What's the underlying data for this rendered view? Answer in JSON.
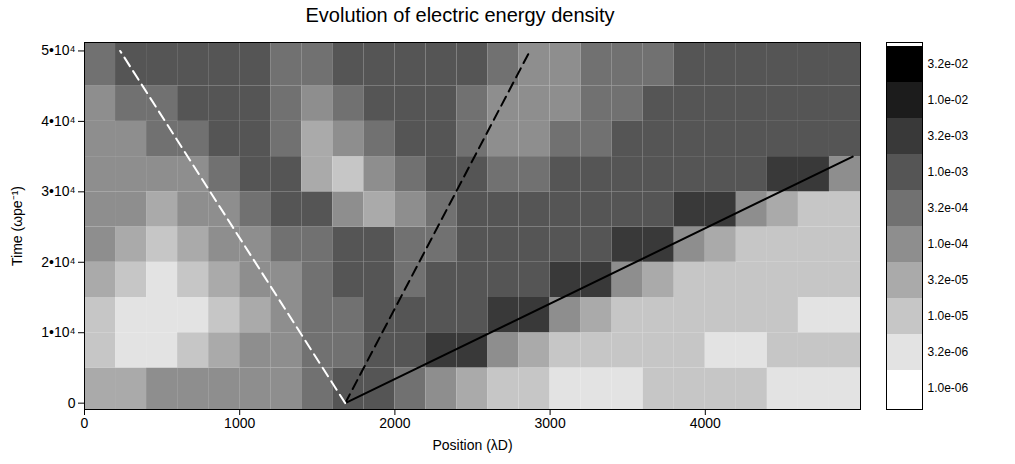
{
  "chart_data": {
    "type": "heatmap",
    "title": "Evolution of electric energy density",
    "xlabel": "Position (λD)",
    "ylabel": "Time (ωpe⁻¹)",
    "xlim": [
      0,
      5000
    ],
    "ylim": [
      -900,
      51200
    ],
    "xticks": [
      0,
      1000,
      2000,
      3000,
      4000
    ],
    "yticks": [
      0,
      {
        "value": 10000,
        "label": "1•10⁴"
      },
      {
        "value": 20000,
        "label": "2•10⁴"
      },
      {
        "value": 30000,
        "label": "3•10⁴"
      },
      {
        "value": 40000,
        "label": "4•10⁴"
      },
      {
        "value": 50000,
        "label": "5•10⁴"
      }
    ],
    "x_edges": [
      0,
      200,
      400,
      600,
      800,
      1000,
      1200,
      1400,
      1600,
      1800,
      2000,
      2200,
      2400,
      2600,
      2800,
      3000,
      3200,
      3400,
      3600,
      3800,
      4000,
      4200,
      4400,
      4600,
      4800,
      5000
    ],
    "y_edges": [
      -900,
      5000,
      10000,
      15000,
      20000,
      25000,
      30000,
      35000,
      40000,
      45000,
      51200
    ],
    "values": [
      [
        3.2e-05,
        3.2e-05,
        0.0001,
        0.0001,
        0.0001,
        0.0001,
        0.0001,
        0.00032,
        0.001,
        0.001,
        0.00032,
        0.0001,
        3.2e-05,
        1e-05,
        1e-05,
        3.2e-06,
        3.2e-06,
        3.2e-06,
        1e-05,
        1e-05,
        1e-05,
        1e-05,
        3.2e-06,
        3.2e-06,
        3.2e-06
      ],
      [
        1e-05,
        3.2e-06,
        3.2e-06,
        1e-05,
        3.2e-05,
        0.0001,
        0.0001,
        0.00032,
        0.00032,
        0.001,
        0.001,
        0.0032,
        0.0032,
        0.0001,
        3.2e-05,
        1e-05,
        1e-05,
        1e-05,
        1e-05,
        1e-05,
        3.2e-06,
        3.2e-06,
        1e-05,
        1e-05,
        1e-05
      ],
      [
        1e-05,
        3.2e-06,
        3.2e-06,
        3.2e-06,
        1e-05,
        3.2e-05,
        0.0001,
        0.00032,
        0.00032,
        0.001,
        0.001,
        0.001,
        0.001,
        0.0032,
        0.0032,
        0.0001,
        3.2e-05,
        1e-05,
        1e-05,
        1e-05,
        1e-05,
        1e-05,
        1e-05,
        3.2e-06,
        3.2e-06
      ],
      [
        3.2e-05,
        1e-05,
        3.2e-06,
        1e-05,
        3.2e-05,
        0.0001,
        0.0001,
        0.00032,
        0.001,
        0.001,
        0.00032,
        0.001,
        0.001,
        0.001,
        0.001,
        0.0032,
        0.0032,
        0.0001,
        3.2e-05,
        1e-05,
        1e-05,
        1e-05,
        1e-05,
        1e-05,
        1e-05
      ],
      [
        0.0001,
        3.2e-05,
        1e-05,
        3.2e-05,
        0.0001,
        0.0001,
        0.00032,
        0.00032,
        0.001,
        0.001,
        0.00032,
        0.00032,
        0.001,
        0.001,
        0.001,
        0.001,
        0.001,
        0.0032,
        0.0032,
        0.0001,
        3.2e-05,
        1e-05,
        1e-05,
        1e-05,
        1e-05
      ],
      [
        0.0001,
        0.0001,
        3.2e-05,
        0.0001,
        0.0001,
        0.00032,
        0.001,
        0.001,
        0.0001,
        3.2e-05,
        0.0001,
        0.00032,
        0.001,
        0.001,
        0.001,
        0.001,
        0.001,
        0.001,
        0.001,
        0.0032,
        0.0032,
        0.0001,
        3.2e-05,
        1e-05,
        1e-05
      ],
      [
        0.0001,
        0.0001,
        0.0001,
        0.0001,
        0.00032,
        0.001,
        0.001,
        3.2e-05,
        1e-05,
        0.0001,
        0.00032,
        0.001,
        0.001,
        0.00032,
        0.00032,
        0.001,
        0.001,
        0.001,
        0.001,
        0.001,
        0.001,
        0.001,
        0.0032,
        0.0032,
        0.0001
      ],
      [
        0.0001,
        0.0001,
        0.00032,
        0.00032,
        0.001,
        0.001,
        0.00032,
        3.2e-05,
        0.0001,
        0.00032,
        0.001,
        0.001,
        0.00032,
        0.0001,
        0.0001,
        0.00032,
        0.00032,
        0.001,
        0.001,
        0.001,
        0.001,
        0.001,
        0.001,
        0.001,
        0.001
      ],
      [
        0.0001,
        0.00032,
        0.00032,
        0.001,
        0.001,
        0.001,
        0.00032,
        0.0001,
        0.00032,
        0.001,
        0.001,
        0.001,
        0.00032,
        0.0001,
        0.0001,
        0.0001,
        0.00032,
        0.00032,
        0.001,
        0.001,
        0.001,
        0.001,
        0.001,
        0.001,
        0.001
      ],
      [
        0.00032,
        0.001,
        0.001,
        0.001,
        0.001,
        0.001,
        0.00032,
        0.00032,
        0.001,
        0.001,
        0.001,
        0.001,
        0.001,
        0.00032,
        0.0001,
        0.0001,
        0.00032,
        0.00032,
        0.00032,
        0.001,
        0.001,
        0.001,
        0.001,
        0.001,
        0.001
      ]
    ],
    "colorbar_ticks": [
      {
        "value": 1e-06,
        "label": "1.0e-06"
      },
      {
        "value": 3.2e-06,
        "label": "3.2e-06"
      },
      {
        "value": 1e-05,
        "label": "1.0e-05"
      },
      {
        "value": 3.2e-05,
        "label": "3.2e-05"
      },
      {
        "value": 0.0001,
        "label": "1.0e-04"
      },
      {
        "value": 0.00032,
        "label": "3.2e-04"
      },
      {
        "value": 0.001,
        "label": "1.0e-03"
      },
      {
        "value": 0.0032,
        "label": "3.2e-03"
      },
      {
        "value": 0.01,
        "label": "1.0e-02"
      },
      {
        "value": 0.032,
        "label": "3.2e-02"
      }
    ],
    "lines": [
      {
        "x": [
          1680,
          4950
        ],
        "y": [
          0,
          35000
        ],
        "color": "black",
        "line_style": "solid"
      },
      {
        "x": [
          1680,
          2870
        ],
        "y": [
          0,
          50000
        ],
        "color": "black",
        "line_style": "dashed"
      },
      {
        "x": [
          1680,
          230
        ],
        "y": [
          0,
          50000
        ],
        "color": "white",
        "line_style": "dashed"
      }
    ]
  }
}
